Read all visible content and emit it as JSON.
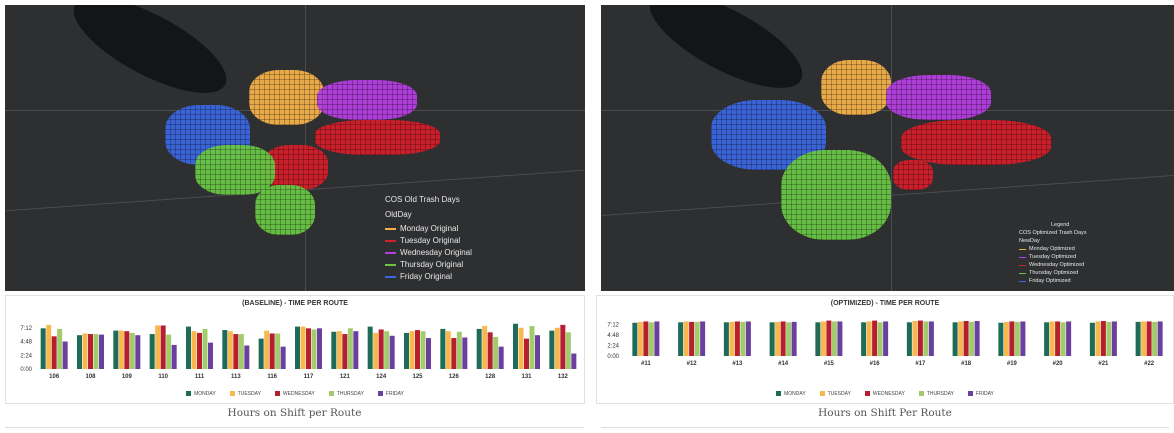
{
  "colors": {
    "monday": "#1d6b58",
    "tuesday": "#f6b84f",
    "wednesday": "#b51f2e",
    "thursday": "#a2cc6c",
    "friday": "#6b3fa0",
    "map_bg": "#2e2f31",
    "zone_orange": "#f3b04a",
    "zone_purple": "#b43ee0",
    "zone_red": "#d11f2b",
    "zone_green": "#69c544",
    "zone_blue": "#3b66de"
  },
  "left": {
    "legend": {
      "title": "COS Old Trash Days",
      "field": "OldDay",
      "items": [
        {
          "label": "Monday Original",
          "color": "#f3b04a"
        },
        {
          "label": "Tuesday Original",
          "color": "#d11f2b"
        },
        {
          "label": "Wednesday Original",
          "color": "#b43ee0"
        },
        {
          "label": "Thursday Original",
          "color": "#69c544"
        },
        {
          "label": "Friday Original",
          "color": "#3b66de"
        }
      ]
    },
    "caption": "Hours on Shift per Route"
  },
  "right": {
    "legend": {
      "heading": "Legend",
      "title": "COS Optimized Trash Days",
      "field": "NewDay",
      "items": [
        {
          "label": "Monday Optimized",
          "color": "#f3b04a"
        },
        {
          "label": "Tuesday Optimized",
          "color": "#b43ee0"
        },
        {
          "label": "Wednesday Optimized",
          "color": "#d11f2b"
        },
        {
          "label": "Thursday Optimized",
          "color": "#69c544"
        },
        {
          "label": "Friday Optimized",
          "color": "#3b66de"
        }
      ]
    },
    "caption": "Hours on Shift Per Route"
  },
  "chart_data": [
    {
      "type": "bar",
      "title": "(BASELINE) - TIME PER ROUTE",
      "categories": [
        "106",
        "108",
        "109",
        "110",
        "111",
        "113",
        "116",
        "117",
        "121",
        "124",
        "125",
        "126",
        "128",
        "131",
        "132"
      ],
      "yticks": [
        "0:00",
        "2:24",
        "4:48",
        "7:12"
      ],
      "ylim": [
        0,
        9.6
      ],
      "series": [
        {
          "name": "MONDAY",
          "values": [
            7.1,
            5.9,
            6.7,
            6.1,
            7.4,
            6.8,
            5.3,
            7.4,
            6.5,
            7.4,
            6.3,
            7.0,
            7.0,
            7.9,
            6.7
          ]
        },
        {
          "name": "TUESDAY",
          "values": [
            7.7,
            6.2,
            6.7,
            7.6,
            6.6,
            6.6,
            6.7,
            7.4,
            6.6,
            6.3,
            6.6,
            6.6,
            7.5,
            7.2,
            7.2
          ]
        },
        {
          "name": "WEDNESDAY",
          "values": [
            5.7,
            6.1,
            6.6,
            7.6,
            6.3,
            6.1,
            6.2,
            7.1,
            6.1,
            6.9,
            6.8,
            5.4,
            6.4,
            5.3,
            7.7
          ]
        },
        {
          "name": "THURSDAY",
          "values": [
            7.0,
            6.1,
            6.3,
            6.0,
            7.0,
            6.1,
            6.2,
            6.9,
            7.1,
            6.6,
            6.6,
            6.5,
            5.6,
            7.5,
            6.4
          ]
        },
        {
          "name": "FRIDAY",
          "values": [
            4.8,
            6.0,
            5.9,
            4.2,
            4.6,
            4.1,
            3.9,
            7.1,
            6.6,
            5.8,
            5.4,
            5.5,
            3.9,
            5.9,
            2.7
          ]
        }
      ],
      "legend_position": "bottom"
    },
    {
      "type": "bar",
      "title": "(OPTIMIZED) - TIME PER ROUTE",
      "categories": [
        "#11",
        "#12",
        "#13",
        "#14",
        "#15",
        "#16",
        "#17",
        "#18",
        "#19",
        "#20",
        "#21",
        "#22"
      ],
      "yticks": [
        "0:00",
        "2:24",
        "4:48",
        "7:12"
      ],
      "ylim": [
        0,
        9.6
      ],
      "series": [
        {
          "name": "MONDAY",
          "values": [
            7.6,
            7.7,
            7.7,
            7.7,
            7.7,
            7.7,
            7.7,
            7.7,
            7.6,
            7.7,
            7.6,
            7.8
          ]
        },
        {
          "name": "TUESDAY",
          "values": [
            7.8,
            7.9,
            7.8,
            7.8,
            7.9,
            7.9,
            8.0,
            7.9,
            7.8,
            7.9,
            7.9,
            7.9
          ]
        },
        {
          "name": "WEDNESDAY",
          "values": [
            7.9,
            7.8,
            7.9,
            7.9,
            8.1,
            8.1,
            8.1,
            8.0,
            7.9,
            7.9,
            8.0,
            7.9
          ]
        },
        {
          "name": "THURSDAY",
          "values": [
            7.7,
            7.8,
            7.8,
            7.7,
            7.9,
            7.7,
            7.9,
            7.8,
            7.8,
            7.7,
            7.8,
            7.8
          ]
        },
        {
          "name": "FRIDAY",
          "values": [
            7.9,
            7.9,
            7.9,
            7.8,
            7.9,
            7.9,
            7.9,
            8.0,
            7.9,
            7.9,
            7.9,
            7.9
          ]
        }
      ],
      "legend_position": "bottom"
    }
  ]
}
